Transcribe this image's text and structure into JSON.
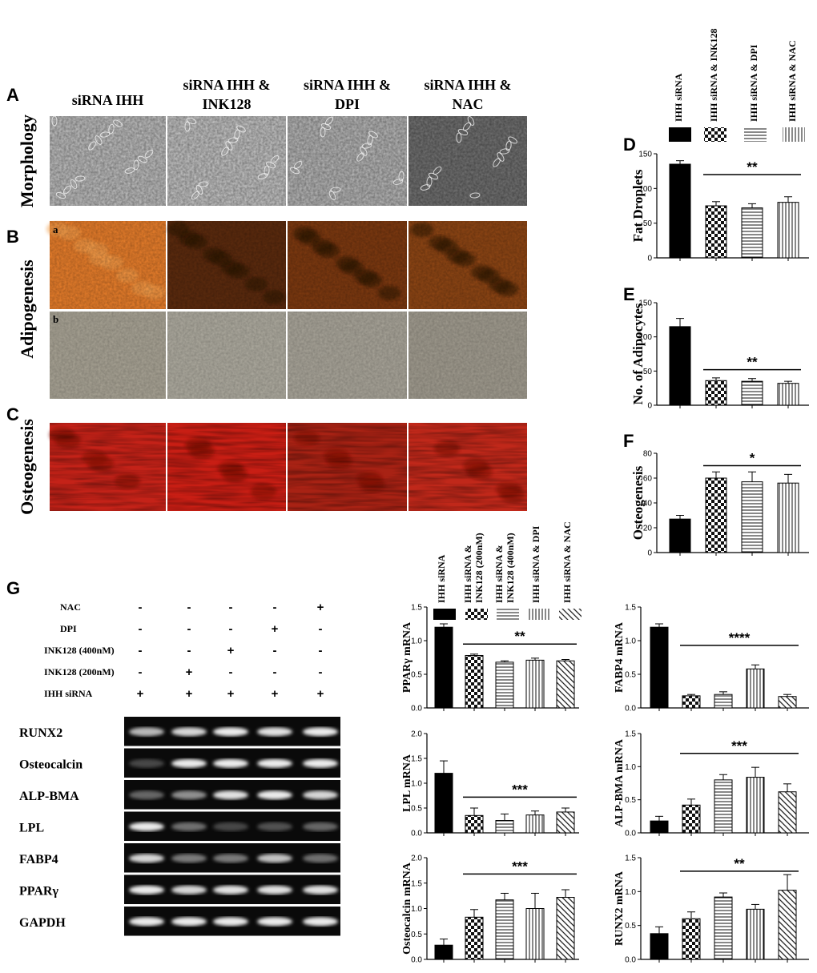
{
  "panel_letters": {
    "A": "A",
    "B": "B",
    "C": "C",
    "D": "D",
    "E": "E",
    "F": "F",
    "G": "G",
    "sub_a": "a",
    "sub_b": "b"
  },
  "micrographs": {
    "column_headers": [
      [
        "siRNA IHH"
      ],
      [
        "siRNA IHH &",
        "INK128"
      ],
      [
        "siRNA IHH &",
        "DPI"
      ],
      [
        "siRNA IHH &",
        "NAC"
      ]
    ],
    "row_labels": {
      "morphology": "Morphology",
      "adipogenesis": "Adipogenesis",
      "osteogenesis": "Osteogenesis"
    },
    "colors": {
      "morphology": [
        "#b8b8b8",
        "#bdbdbd",
        "#b0b0b0",
        "#6e6e6e"
      ],
      "adipo_a": [
        "#e07a2a",
        "#5a2a0e",
        "#7a3810",
        "#8a4414"
      ],
      "adipo_b": [
        "#a39e90",
        "#a8a59a",
        "#a39f94",
        "#9b968a"
      ],
      "osteo": [
        "#c42218",
        "#c81e14",
        "#a82214",
        "#c0281a"
      ]
    }
  },
  "legend_top": {
    "labels": [
      "IHH siRNA",
      "IHH siRNA  & INK128",
      "IHH siRNA  & DPI",
      "IHH siRNA  & NAC"
    ],
    "patterns": [
      "solid",
      "check",
      "hlines",
      "vlines"
    ]
  },
  "legend_g": {
    "labels": [
      "IHH siRNA",
      "IHH siRNA &\nINK128 (200nM)",
      "IHH siRNA &\nINK128 (400nM)",
      "IHH siRNA  & DPI",
      "IHH siRNA  & NAC"
    ],
    "patterns": [
      "solid",
      "check",
      "hlines",
      "vlines",
      "diag"
    ]
  },
  "gel": {
    "treatment_rows": [
      {
        "label": "NAC",
        "signs": [
          "-",
          "-",
          "-",
          "-",
          "+"
        ]
      },
      {
        "label": "DPI",
        "signs": [
          "-",
          "-",
          "-",
          "+",
          "-"
        ]
      },
      {
        "label": "INK128 (400nM)",
        "signs": [
          "-",
          "-",
          "+",
          "-",
          "-"
        ]
      },
      {
        "label": "INK128 (200nM)",
        "signs": [
          "-",
          "+",
          "-",
          "-",
          "-"
        ]
      },
      {
        "label": "IHH siRNA",
        "signs": [
          "+",
          "+",
          "+",
          "+",
          "+"
        ]
      }
    ],
    "genes": [
      "RUNX2",
      "Osteocalcin",
      "ALP-BMA",
      "LPL",
      "FABP4",
      "PPARγ",
      "GAPDH"
    ],
    "band_intensity": [
      [
        0.7,
        0.85,
        0.95,
        0.9,
        0.95
      ],
      [
        0.15,
        0.95,
        0.95,
        0.95,
        0.95
      ],
      [
        0.3,
        0.5,
        0.9,
        0.95,
        0.85
      ],
      [
        0.95,
        0.35,
        0.15,
        0.2,
        0.3
      ],
      [
        0.85,
        0.4,
        0.4,
        0.75,
        0.35
      ],
      [
        0.95,
        0.85,
        0.9,
        0.9,
        0.9
      ],
      [
        0.95,
        0.95,
        0.95,
        0.95,
        0.95
      ]
    ]
  },
  "chart_data": [
    {
      "id": "D",
      "type": "bar",
      "ylabel": "Fat Droplets",
      "categories": [
        "IHH siRNA",
        "IHH siRNA  & INK128",
        "IHH siRNA  & DPI",
        "IHH siRNA  & NAC"
      ],
      "values": [
        135,
        75,
        72,
        80
      ],
      "errors": [
        5,
        6,
        6,
        8
      ],
      "ylim": [
        0,
        150
      ],
      "yticks": [
        "0",
        "50",
        "100",
        "150"
      ],
      "tick_values": [
        0,
        50,
        100,
        150
      ],
      "significance": "**",
      "sig_span": [
        1,
        3
      ],
      "sig_value": 120
    },
    {
      "id": "E",
      "type": "bar",
      "ylabel": "No. of Adipocytes",
      "categories": [
        "IHH siRNA",
        "IHH siRNA  & INK128",
        "IHH siRNA  & DPI",
        "IHH siRNA  & NAC"
      ],
      "values": [
        115,
        36,
        35,
        32
      ],
      "errors": [
        12,
        4,
        4,
        3
      ],
      "ylim": [
        0,
        150
      ],
      "yticks": [
        "0",
        "50",
        "100",
        "150"
      ],
      "tick_values": [
        0,
        50,
        100,
        150
      ],
      "significance": "**",
      "sig_span": [
        1,
        3
      ],
      "sig_value": 52
    },
    {
      "id": "F",
      "type": "bar",
      "ylabel": "Osteogenesis",
      "categories": [
        "IHH siRNA",
        "IHH siRNA  & INK128",
        "IHH siRNA  & DPI",
        "IHH siRNA  & NAC"
      ],
      "values": [
        27,
        60,
        57,
        56
      ],
      "errors": [
        3,
        5,
        8,
        7
      ],
      "ylim": [
        0,
        80
      ],
      "yticks": [
        "0",
        "20",
        "40",
        "60",
        "80"
      ],
      "tick_values": [
        0,
        20,
        40,
        60,
        80
      ],
      "significance": "*",
      "sig_span": [
        1,
        3
      ],
      "sig_value": 70
    },
    {
      "id": "PPARg",
      "type": "bar",
      "ylabel": "PPARγ mRNA",
      "categories": [
        "IHH siRNA",
        "IHH siRNA & INK128 (200nM)",
        "IHH siRNA & INK128 (400nM)",
        "IHH siRNA  & DPI",
        "IHH siRNA  & NAC"
      ],
      "values": [
        1.2,
        0.78,
        0.68,
        0.71,
        0.7
      ],
      "errors": [
        0.05,
        0.02,
        0.02,
        0.03,
        0.02
      ],
      "ylim": [
        0,
        1.5
      ],
      "yticks": [
        "0.0",
        "0.5",
        "1.0",
        "1.5"
      ],
      "tick_values": [
        0,
        0.5,
        1.0,
        1.5
      ],
      "significance": "**",
      "sig_span": [
        1,
        4
      ],
      "sig_value": 0.95
    },
    {
      "id": "FABP4",
      "type": "bar",
      "ylabel": "FABP4  mRNA",
      "categories": [
        "IHH siRNA",
        "IHH siRNA & INK128 (200nM)",
        "IHH siRNA & INK128 (400nM)",
        "IHH siRNA  & DPI",
        "IHH siRNA  & NAC"
      ],
      "values": [
        1.2,
        0.18,
        0.2,
        0.58,
        0.17
      ],
      "errors": [
        0.05,
        0.02,
        0.04,
        0.06,
        0.03
      ],
      "ylim": [
        0,
        1.5
      ],
      "yticks": [
        "0.0",
        "0.5",
        "1.0",
        "1.5"
      ],
      "tick_values": [
        0,
        0.5,
        1.0,
        1.5
      ],
      "significance": "****",
      "sig_span": [
        1,
        4
      ],
      "sig_value": 0.93
    },
    {
      "id": "LPL",
      "type": "bar",
      "ylabel": "LPL  mRNA",
      "categories": [
        "IHH siRNA",
        "IHH siRNA & INK128 (200nM)",
        "IHH siRNA & INK128 (400nM)",
        "IHH siRNA  & DPI",
        "IHH siRNA  & NAC"
      ],
      "values": [
        1.2,
        0.35,
        0.25,
        0.36,
        0.42
      ],
      "errors": [
        0.25,
        0.15,
        0.13,
        0.08,
        0.08
      ],
      "ylim": [
        0,
        2.0
      ],
      "yticks": [
        "0.0",
        "0.5",
        "1.0",
        "1.5",
        "2.0"
      ],
      "tick_values": [
        0,
        0.5,
        1.0,
        1.5,
        2.0
      ],
      "significance": "***",
      "sig_span": [
        1,
        4
      ],
      "sig_value": 0.72
    },
    {
      "id": "ALP-BMA",
      "type": "bar",
      "ylabel": "ALP-BMA  mRNA",
      "categories": [
        "IHH siRNA",
        "IHH siRNA & INK128 (200nM)",
        "IHH siRNA & INK128 (400nM)",
        "IHH siRNA  & DPI",
        "IHH siRNA  & NAC"
      ],
      "values": [
        0.18,
        0.42,
        0.8,
        0.84,
        0.62
      ],
      "errors": [
        0.07,
        0.09,
        0.08,
        0.15,
        0.12
      ],
      "ylim": [
        0,
        1.5
      ],
      "yticks": [
        "0.0",
        "0.5",
        "1.0",
        "1.5"
      ],
      "tick_values": [
        0,
        0.5,
        1.0,
        1.5
      ],
      "significance": "***",
      "sig_span": [
        1,
        4
      ],
      "sig_value": 1.2
    },
    {
      "id": "Osteocalcin",
      "type": "bar",
      "ylabel": "Osteocalcin  mRNA",
      "categories": [
        "IHH siRNA",
        "IHH siRNA & INK128 (200nM)",
        "IHH siRNA & INK128 (400nM)",
        "IHH siRNA  & DPI",
        "IHH siRNA  & NAC"
      ],
      "values": [
        0.28,
        0.83,
        1.17,
        1.0,
        1.22
      ],
      "errors": [
        0.12,
        0.15,
        0.13,
        0.3,
        0.15
      ],
      "ylim": [
        0,
        2.0
      ],
      "yticks": [
        "0.0",
        "0.5",
        "1.0",
        "1.5",
        "2.0"
      ],
      "tick_values": [
        0,
        0.5,
        1.0,
        1.5,
        2.0
      ],
      "significance": "***",
      "sig_span": [
        1,
        4
      ],
      "sig_value": 1.68
    },
    {
      "id": "RUNX2",
      "type": "bar",
      "ylabel": "RUNX2  mRNA",
      "categories": [
        "IHH siRNA",
        "IHH siRNA & INK128 (200nM)",
        "IHH siRNA & INK128 (400nM)",
        "IHH siRNA  & DPI",
        "IHH siRNA  & NAC"
      ],
      "values": [
        0.38,
        0.6,
        0.92,
        0.74,
        1.02
      ],
      "errors": [
        0.1,
        0.1,
        0.06,
        0.07,
        0.23
      ],
      "ylim": [
        0,
        1.5
      ],
      "yticks": [
        "0.0",
        "0.5",
        "1.0",
        "1.5"
      ],
      "tick_values": [
        0,
        0.5,
        1.0,
        1.5
      ],
      "significance": "**",
      "sig_span": [
        1,
        4
      ],
      "sig_value": 1.3
    }
  ]
}
